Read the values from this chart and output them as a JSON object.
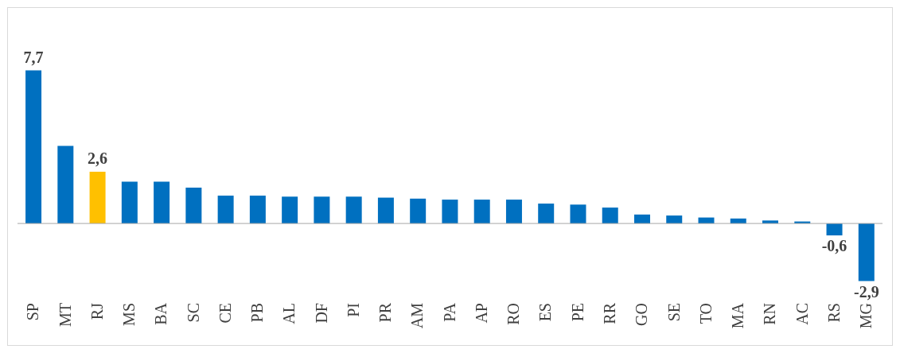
{
  "chart_data": {
    "type": "bar",
    "categories": [
      "SP",
      "MT",
      "RJ",
      "MS",
      "BA",
      "SC",
      "CE",
      "PB",
      "AL",
      "DF",
      "PI",
      "PR",
      "AM",
      "PA",
      "AP",
      "RO",
      "ES",
      "PE",
      "RR",
      "GO",
      "SE",
      "TO",
      "MA",
      "RN",
      "AC",
      "RS",
      "MG"
    ],
    "values": [
      7.7,
      3.9,
      2.6,
      2.1,
      2.1,
      1.8,
      1.4,
      1.4,
      1.35,
      1.35,
      1.35,
      1.3,
      1.25,
      1.2,
      1.2,
      1.2,
      1.0,
      0.95,
      0.8,
      0.45,
      0.4,
      0.3,
      0.25,
      0.15,
      0.1,
      -0.6,
      -2.9
    ],
    "colors": [
      "#0070c0",
      "#0070c0",
      "#ffc000",
      "#0070c0",
      "#0070c0",
      "#0070c0",
      "#0070c0",
      "#0070c0",
      "#0070c0",
      "#0070c0",
      "#0070c0",
      "#0070c0",
      "#0070c0",
      "#0070c0",
      "#0070c0",
      "#0070c0",
      "#0070c0",
      "#0070c0",
      "#0070c0",
      "#0070c0",
      "#0070c0",
      "#0070c0",
      "#0070c0",
      "#0070c0",
      "#0070c0",
      "#0070c0",
      "#0070c0"
    ],
    "value_labels": [
      "7,7",
      null,
      "2,6",
      null,
      null,
      null,
      null,
      null,
      null,
      null,
      null,
      null,
      null,
      null,
      null,
      null,
      null,
      null,
      null,
      null,
      null,
      null,
      null,
      null,
      null,
      "-0,6",
      "-2,9"
    ]
  }
}
